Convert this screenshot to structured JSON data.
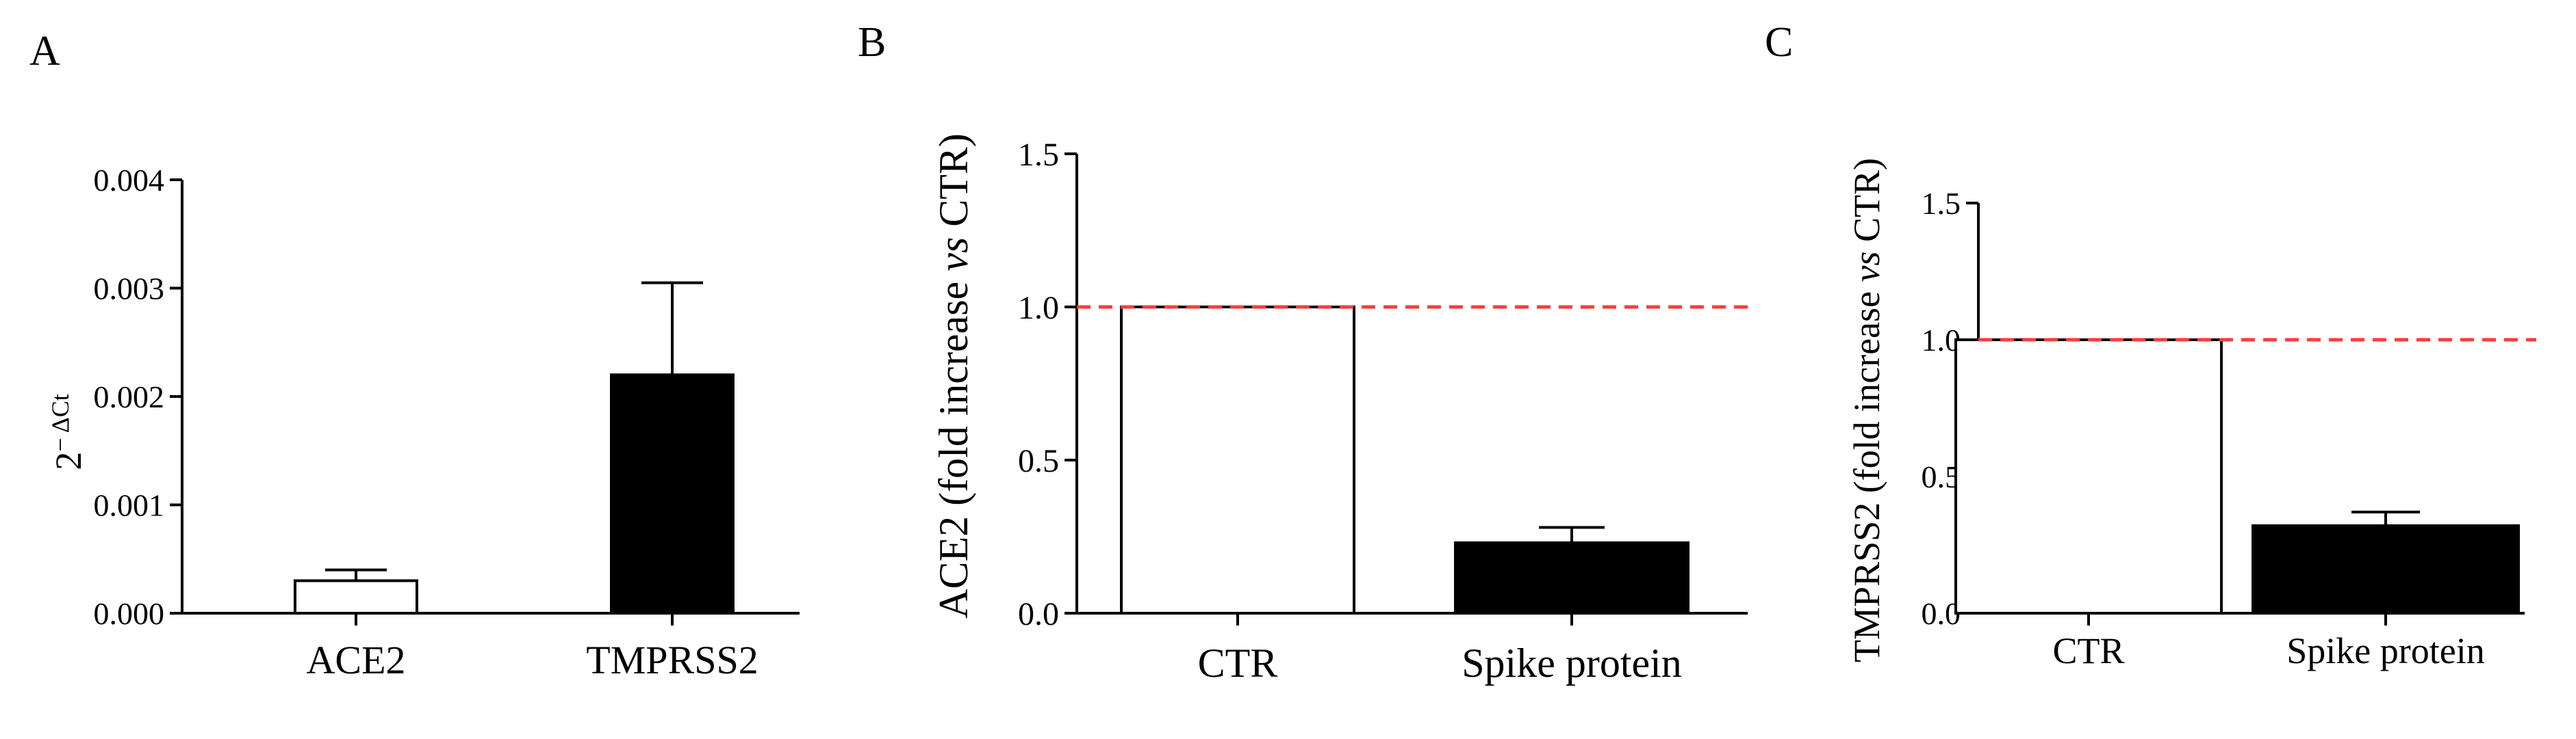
{
  "chart_data": [
    {
      "type": "bar",
      "panel_label": "A",
      "categories": [
        "ACE2",
        "TMPRSS2"
      ],
      "values": [
        0.0003,
        0.0022
      ],
      "error": [
        0.0001,
        0.00085
      ],
      "bar_colors": [
        "#ffffff",
        "#000000"
      ],
      "ylabel_base": "2",
      "ylabel_sup": "− ΔCt",
      "ylim": [
        0,
        0.004
      ],
      "yticks": [
        "0.000",
        "0.001",
        "0.002",
        "0.003",
        "0.004"
      ],
      "reference_line": null
    },
    {
      "type": "bar",
      "panel_label": "B",
      "categories": [
        "CTR",
        "Spike protein"
      ],
      "values": [
        1.0,
        0.23
      ],
      "error": [
        0,
        0.05
      ],
      "bar_colors": [
        "#ffffff",
        "#000000"
      ],
      "ylabel_pre": "ACE2 (fold increase ",
      "ylabel_vs": "vs",
      "ylabel_post": " CTR)",
      "ylim": [
        0,
        1.5
      ],
      "yticks": [
        "0.0",
        "0.5",
        "1.0",
        "1.5"
      ],
      "reference_line": 1.0,
      "reference_color": "#ff3b3b"
    },
    {
      "type": "bar",
      "panel_label": "C",
      "categories": [
        "CTR",
        "Spike protein"
      ],
      "values": [
        1.0,
        0.32
      ],
      "error": [
        0,
        0.05
      ],
      "bar_colors": [
        "#ffffff",
        "#000000"
      ],
      "ylabel_pre": "TMPRSS2 (fold increase ",
      "ylabel_vs": "vs",
      "ylabel_post": " CTR)",
      "ylim": [
        0,
        1.5
      ],
      "yticks": [
        "0.0",
        "0.5",
        "1.0",
        "1.5"
      ],
      "reference_line": 1.0,
      "reference_color": "#ff3b3b"
    }
  ]
}
